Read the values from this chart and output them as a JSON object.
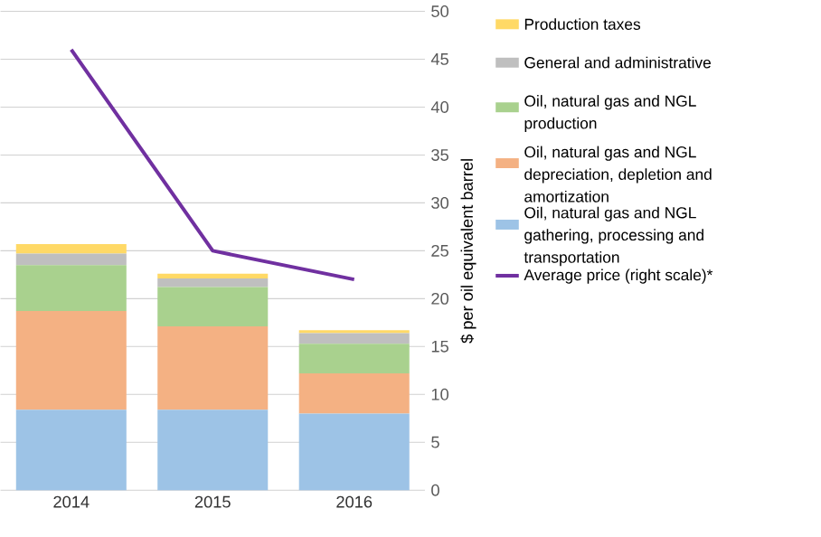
{
  "chart_data": {
    "type": "bar",
    "stacked": true,
    "ylabel": "$ per oil equivalent barrel",
    "categories": [
      "2014",
      "2015",
      "2016"
    ],
    "series": [
      {
        "name": "Oil, natural gas and NGL gathering, processing and transportation",
        "color": "#9dc3e6",
        "values": [
          8.4,
          8.4,
          8.0
        ]
      },
      {
        "name": "Oil, natural gas and NGL depreciation, depletion and amortization",
        "color": "#f4b183",
        "values": [
          10.3,
          8.7,
          4.2
        ]
      },
      {
        "name": "Oil, natural gas and NGL production",
        "color": "#a9d18e",
        "values": [
          4.8,
          4.1,
          3.1
        ]
      },
      {
        "name": "General and administrative",
        "color": "#bfbfbf",
        "values": [
          1.2,
          0.9,
          1.1
        ]
      },
      {
        "name": "Production taxes",
        "color": "#ffd966",
        "values": [
          1.0,
          0.5,
          0.3
        ]
      },
      {
        "name": "Average price (right scale)*",
        "type": "line",
        "color": "#7030a0",
        "values": [
          46,
          25,
          22
        ]
      }
    ],
    "ylim": [
      0,
      50
    ],
    "yticks": [
      0,
      5,
      10,
      15,
      20,
      25,
      30,
      35,
      40,
      45,
      50
    ],
    "grid": "y",
    "legend": "right"
  }
}
